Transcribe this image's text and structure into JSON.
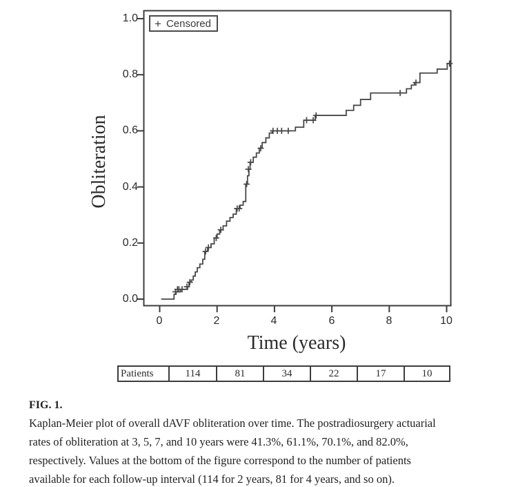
{
  "figure": {
    "caption_label": "FIG. 1.",
    "caption_lines": [
      "Kaplan-Meier plot of overall dAVF obliteration over time. The postradiosurgery actuarial",
      "rates of obliteration at 3, 5, 7, and 10 years were 41.3%, 61.1%, 70.1%, and 82.0%,",
      "respectively. Values at the bottom of the figure correspond to the number of patients",
      "available for each follow-up interval (114 for 2 years, 81 for 4 years, and so on)."
    ]
  },
  "legend": {
    "marker": "+",
    "label": "Censored"
  },
  "chart_data": {
    "type": "line",
    "subtype": "kaplan-meier-step",
    "xlabel": "Time (years)",
    "ylabel": "Obliteration",
    "xlim": [
      0,
      10.3
    ],
    "ylim": [
      0.0,
      1.0
    ],
    "grid": false,
    "legend_position": "top-left",
    "legend_entries": [
      "+ Censored"
    ],
    "xtick_values": [
      0,
      2,
      4,
      6,
      8,
      10
    ],
    "xtick_labels": [
      "0",
      "2",
      "4",
      "6",
      "8",
      "10"
    ],
    "ytick_values": [
      1.0,
      0.8,
      0.6,
      0.4,
      0.2,
      0.0
    ],
    "ytick_labels": [
      "1.0",
      "0.8",
      "0.6",
      "0.4",
      "0.2",
      "0.0"
    ],
    "start_time": 0.05,
    "end_time": 10.15,
    "steps": [
      [
        0.05,
        0.0
      ],
      [
        0.5,
        0.017
      ],
      [
        0.57,
        0.026
      ],
      [
        0.73,
        0.035
      ],
      [
        0.97,
        0.044
      ],
      [
        1.02,
        0.06
      ],
      [
        1.1,
        0.068
      ],
      [
        1.17,
        0.082
      ],
      [
        1.24,
        0.097
      ],
      [
        1.31,
        0.112
      ],
      [
        1.4,
        0.125
      ],
      [
        1.5,
        0.142
      ],
      [
        1.57,
        0.17
      ],
      [
        1.67,
        0.184
      ],
      [
        1.79,
        0.197
      ],
      [
        1.9,
        0.218
      ],
      [
        2.0,
        0.232
      ],
      [
        2.09,
        0.247
      ],
      [
        2.21,
        0.261
      ],
      [
        2.33,
        0.278
      ],
      [
        2.45,
        0.291
      ],
      [
        2.56,
        0.303
      ],
      [
        2.67,
        0.323
      ],
      [
        2.8,
        0.335
      ],
      [
        2.91,
        0.348
      ],
      [
        3.0,
        0.41
      ],
      [
        3.06,
        0.44
      ],
      [
        3.11,
        0.463
      ],
      [
        3.15,
        0.488
      ],
      [
        3.26,
        0.506
      ],
      [
        3.37,
        0.521
      ],
      [
        3.47,
        0.538
      ],
      [
        3.57,
        0.558
      ],
      [
        3.7,
        0.575
      ],
      [
        3.82,
        0.592
      ],
      [
        3.92,
        0.6
      ],
      [
        4.73,
        0.613
      ],
      [
        5.02,
        0.638
      ],
      [
        5.42,
        0.655
      ],
      [
        6.5,
        0.673
      ],
      [
        6.76,
        0.691
      ],
      [
        7.0,
        0.712
      ],
      [
        7.35,
        0.735
      ],
      [
        8.6,
        0.75
      ],
      [
        8.77,
        0.763
      ],
      [
        8.88,
        0.772
      ],
      [
        9.07,
        0.806
      ],
      [
        9.67,
        0.82
      ],
      [
        10.02,
        0.84
      ]
    ],
    "censored": [
      [
        0.55,
        0.026
      ],
      [
        0.62,
        0.035
      ],
      [
        0.67,
        0.035
      ],
      [
        0.78,
        0.035
      ],
      [
        0.95,
        0.044
      ],
      [
        1.05,
        0.06
      ],
      [
        1.6,
        0.17
      ],
      [
        1.7,
        0.184
      ],
      [
        1.97,
        0.218
      ],
      [
        2.13,
        0.247
      ],
      [
        2.7,
        0.323
      ],
      [
        2.77,
        0.323
      ],
      [
        3.03,
        0.41
      ],
      [
        3.09,
        0.463
      ],
      [
        3.17,
        0.488
      ],
      [
        3.52,
        0.538
      ],
      [
        3.95,
        0.6
      ],
      [
        4.1,
        0.6
      ],
      [
        4.25,
        0.6
      ],
      [
        4.48,
        0.6
      ],
      [
        5.12,
        0.638
      ],
      [
        5.35,
        0.638
      ],
      [
        5.45,
        0.655
      ],
      [
        8.38,
        0.735
      ],
      [
        8.93,
        0.772
      ],
      [
        10.1,
        0.84
      ]
    ],
    "key_rates": [
      {
        "year": 3,
        "rate": "41.3%"
      },
      {
        "year": 5,
        "rate": "61.1%"
      },
      {
        "year": 7,
        "rate": "70.1%"
      },
      {
        "year": 10,
        "rate": "82.0%"
      }
    ],
    "at_risk": {
      "label": "Patients",
      "values": [
        "114",
        "81",
        "34",
        "22",
        "17",
        "10"
      ]
    },
    "colors": {
      "curve": "#474747",
      "frame": "#3c3c3c",
      "text": "#2a2a2a",
      "background": "#ffffff"
    }
  }
}
